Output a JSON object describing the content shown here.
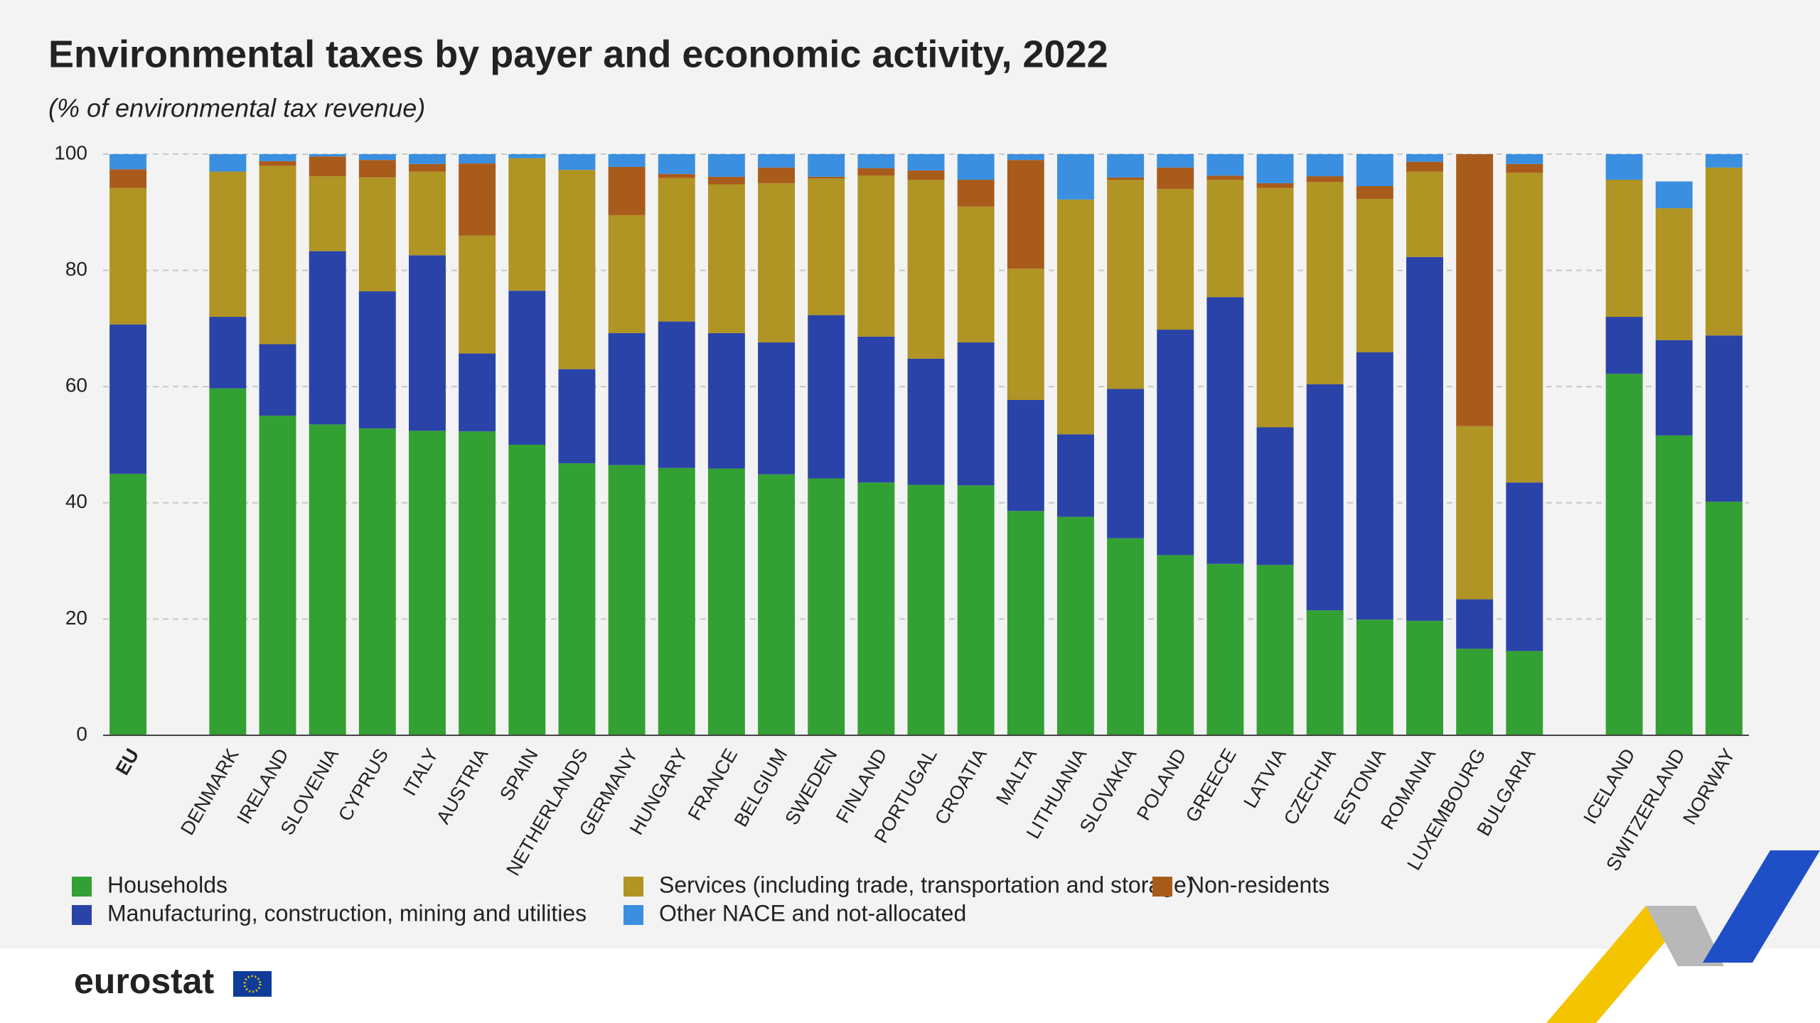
{
  "chart_data": {
    "type": "stacked-bar",
    "title": "Environmental taxes by payer and economic activity, 2022",
    "subtitle": "(% of environmental tax revenue)",
    "categories": [
      "EU",
      null,
      "DENMARK",
      "IRELAND",
      "SLOVENIA",
      "CYPRUS",
      "ITALY",
      "AUSTRIA",
      "SPAIN",
      "NETHERLANDS",
      "GERMANY",
      "HUNGARY",
      "FRANCE",
      "BELGIUM",
      "SWEDEN",
      "FINLAND",
      "PORTUGAL",
      "CROATIA",
      "MALTA",
      "LITHUANIA",
      "SLOVAKIA",
      "POLAND",
      "GREECE",
      "LATVIA",
      "CZECHIA",
      "ESTONIA",
      "ROMANIA",
      "LUXEMBOURG",
      "BULGARIA",
      null,
      "ICELAND",
      "SWITZERLAND",
      "NORWAY"
    ],
    "series": [
      {
        "name": "Households",
        "color": "#33a033",
        "values": [
          45,
          null,
          59.7,
          55,
          53.5,
          52.8,
          52.4,
          52.3,
          50,
          46.8,
          46.5,
          46,
          45.9,
          44.9,
          44.2,
          43.5,
          43.1,
          43,
          38.6,
          37.6,
          33.9,
          31,
          29.5,
          29.3,
          21.5,
          19.9,
          19.7,
          14.9,
          14.5,
          null,
          62.2,
          51.6,
          40.2
        ]
      },
      {
        "name": "Manufacturing, construction, mining and utilities",
        "color": "#2a43a8",
        "values": [
          25.7,
          null,
          12.3,
          12.3,
          29.8,
          23.6,
          30.2,
          13.4,
          26.5,
          16.2,
          22.7,
          25.2,
          23.3,
          22.7,
          28.1,
          25.1,
          21.7,
          24.6,
          19.1,
          14.2,
          25.7,
          38.8,
          45.9,
          23.7,
          38.9,
          46,
          62.6,
          8.5,
          29,
          null,
          9.8,
          16.4,
          28.6
        ]
      },
      {
        "name": "Services (including trade, transportation and storage)",
        "color": "#b09424",
        "values": [
          23.5,
          null,
          25,
          30.7,
          12.9,
          19.6,
          14.4,
          20.3,
          22.8,
          34.3,
          20.3,
          24.7,
          25.6,
          27.4,
          23.5,
          27.7,
          30.8,
          23.4,
          22.6,
          40.4,
          36,
          24.2,
          20.2,
          41.2,
          34.8,
          26.4,
          14.7,
          29.8,
          53.3,
          null,
          23.6,
          22.7,
          28.9
        ]
      },
      {
        "name": "Non-residents",
        "color": "#a95b1c",
        "values": [
          3.2,
          null,
          0,
          0.8,
          3.4,
          3,
          1.3,
          12.4,
          0,
          0,
          8.3,
          0.7,
          1.3,
          2.7,
          0.3,
          1.3,
          1.6,
          4.6,
          18.7,
          0,
          0.4,
          3.7,
          0.7,
          0.8,
          1,
          2.2,
          1.7,
          46.8,
          1.5,
          null,
          0,
          0,
          0
        ]
      },
      {
        "name": "Other NACE and not-allocated",
        "color": "#3a8fe0",
        "values": [
          2.6,
          null,
          3,
          1.2,
          0.4,
          1,
          1.7,
          1.6,
          0.7,
          2.7,
          2.2,
          3.4,
          3.9,
          2.3,
          3.9,
          2.4,
          2.8,
          4.4,
          1,
          7.8,
          4,
          2.3,
          3.7,
          5,
          3.8,
          5.5,
          1.3,
          0,
          1.7,
          null,
          4.4,
          4.6,
          2.3
        ]
      }
    ],
    "ylim": [
      0,
      100
    ],
    "yticks": [
      0,
      20,
      40,
      60,
      80,
      100
    ],
    "grid": true
  },
  "footer": {
    "logo": "eurostat"
  }
}
